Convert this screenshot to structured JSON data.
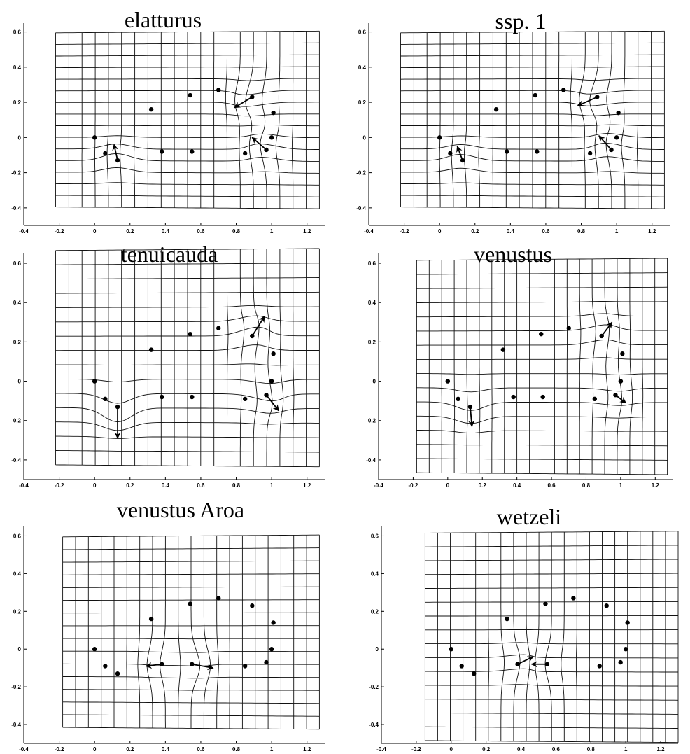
{
  "chart_data": [
    {
      "type": "scatter",
      "title": "elatturus",
      "xlim": [
        -0.4,
        1.3
      ],
      "ylim": [
        -0.5,
        0.65
      ],
      "xticks": [
        "-0.4",
        "-0.2",
        "0",
        "0.2",
        "0.4",
        "0.6",
        "0.8",
        "1",
        "1.2"
      ],
      "yticks": [
        "-0.4",
        "-0.2",
        "0",
        "0.2",
        "0.4",
        "0.6"
      ],
      "grid_extent": {
        "x": [
          -0.22,
          1.27
        ],
        "y": [
          -0.4,
          0.6
        ]
      },
      "landmarks": {
        "x": [
          0.0,
          0.06,
          0.13,
          0.32,
          0.38,
          0.54,
          0.55,
          0.7,
          0.85,
          0.89,
          0.97,
          1.0,
          1.01
        ],
        "y": [
          0.0,
          -0.09,
          -0.13,
          0.16,
          -0.08,
          0.24,
          -0.08,
          0.27,
          -0.09,
          0.23,
          -0.07,
          0.0,
          0.14
        ]
      },
      "vectors": [
        {
          "x": 0.13,
          "y": -0.13,
          "dx": -0.02,
          "dy": 0.09
        },
        {
          "x": 0.89,
          "y": 0.23,
          "dx": -0.1,
          "dy": -0.06
        },
        {
          "x": 0.97,
          "y": -0.07,
          "dx": -0.08,
          "dy": 0.07
        }
      ]
    },
    {
      "type": "scatter",
      "title": "ssp. 1",
      "xlim": [
        -0.4,
        1.3
      ],
      "ylim": [
        -0.5,
        0.65
      ],
      "xticks": [
        "-0.4",
        "-0.2",
        "0",
        "0.2",
        "0.4",
        "0.6",
        "0.8",
        "1",
        "1.2"
      ],
      "yticks": [
        "-0.4",
        "-0.2",
        "0",
        "0.2",
        "0.4",
        "0.6"
      ],
      "grid_extent": {
        "x": [
          -0.22,
          1.27
        ],
        "y": [
          -0.4,
          0.6
        ]
      },
      "landmarks": {
        "x": [
          0.0,
          0.06,
          0.13,
          0.32,
          0.38,
          0.54,
          0.55,
          0.7,
          0.85,
          0.89,
          0.97,
          1.0,
          1.01
        ],
        "y": [
          0.0,
          -0.09,
          -0.13,
          0.16,
          -0.08,
          0.24,
          -0.08,
          0.27,
          -0.09,
          0.23,
          -0.07,
          0.0,
          0.14
        ]
      },
      "vectors": [
        {
          "x": 0.13,
          "y": -0.13,
          "dx": -0.03,
          "dy": 0.08
        },
        {
          "x": 0.89,
          "y": 0.23,
          "dx": -0.11,
          "dy": -0.05
        },
        {
          "x": 0.97,
          "y": -0.07,
          "dx": -0.07,
          "dy": 0.08
        }
      ]
    },
    {
      "type": "scatter",
      "title": "tenuicauda",
      "xlim": [
        -0.4,
        1.3
      ],
      "ylim": [
        -0.5,
        0.65
      ],
      "xticks": [
        "-0.4",
        "-0.2",
        "0",
        "0.2",
        "0.4",
        "0.6",
        "0.8",
        "1",
        "1.2"
      ],
      "yticks": [
        "-0.4",
        "-0.2",
        "0",
        "0.2",
        "0.4",
        "0.6"
      ],
      "grid_extent": {
        "x": [
          -0.22,
          1.27
        ],
        "y": [
          -0.43,
          0.67
        ]
      },
      "landmarks": {
        "x": [
          0.0,
          0.06,
          0.13,
          0.32,
          0.38,
          0.54,
          0.55,
          0.7,
          0.85,
          0.89,
          0.97,
          1.0,
          1.01
        ],
        "y": [
          0.0,
          -0.09,
          -0.13,
          0.16,
          -0.08,
          0.24,
          -0.08,
          0.27,
          -0.09,
          0.23,
          -0.07,
          0.0,
          0.14
        ]
      },
      "vectors": [
        {
          "x": 0.13,
          "y": -0.13,
          "dx": 0.0,
          "dy": -0.16
        },
        {
          "x": 0.89,
          "y": 0.23,
          "dx": 0.07,
          "dy": 0.1
        },
        {
          "x": 0.97,
          "y": -0.07,
          "dx": 0.07,
          "dy": -0.08
        }
      ]
    },
    {
      "type": "scatter",
      "title": "venustus",
      "xlim": [
        -0.4,
        1.3
      ],
      "ylim": [
        -0.5,
        0.65
      ],
      "xticks": [
        "-0.4",
        "-0.2",
        "0",
        "0.2",
        "0.4",
        "0.6",
        "0.8",
        "1",
        "1.2"
      ],
      "yticks": [
        "-0.4",
        "-0.2",
        "0",
        "0.2",
        "0.4",
        "0.6"
      ],
      "grid_extent": {
        "x": [
          -0.18,
          1.27
        ],
        "y": [
          -0.47,
          0.62
        ]
      },
      "landmarks": {
        "x": [
          0.0,
          0.06,
          0.13,
          0.32,
          0.38,
          0.54,
          0.55,
          0.7,
          0.85,
          0.89,
          0.97,
          1.0,
          1.01
        ],
        "y": [
          0.0,
          -0.09,
          -0.13,
          0.16,
          -0.08,
          0.24,
          -0.08,
          0.27,
          -0.09,
          0.23,
          -0.07,
          0.0,
          0.14
        ]
      },
      "vectors": [
        {
          "x": 0.13,
          "y": -0.13,
          "dx": 0.01,
          "dy": -0.1
        },
        {
          "x": 0.89,
          "y": 0.23,
          "dx": 0.06,
          "dy": 0.07
        },
        {
          "x": 0.97,
          "y": -0.07,
          "dx": 0.06,
          "dy": -0.04
        }
      ]
    },
    {
      "type": "scatter",
      "title": "venustus Aroa",
      "xlim": [
        -0.4,
        1.3
      ],
      "ylim": [
        -0.5,
        0.65
      ],
      "xticks": [
        "-0.4",
        "-0.2",
        "0",
        "0.2",
        "0.4",
        "0.6",
        "0.8",
        "1",
        "1.2"
      ],
      "yticks": [
        "-0.4",
        "-0.2",
        "0",
        "0.2",
        "0.4",
        "0.6"
      ],
      "grid_extent": {
        "x": [
          -0.18,
          1.27
        ],
        "y": [
          -0.42,
          0.6
        ]
      },
      "landmarks": {
        "x": [
          0.0,
          0.06,
          0.13,
          0.32,
          0.38,
          0.54,
          0.55,
          0.7,
          0.85,
          0.89,
          0.97,
          1.0,
          1.01
        ],
        "y": [
          0.0,
          -0.09,
          -0.13,
          0.16,
          -0.08,
          0.24,
          -0.08,
          0.27,
          -0.09,
          0.23,
          -0.07,
          0.0,
          0.14
        ]
      },
      "vectors": [
        {
          "x": 0.38,
          "y": -0.08,
          "dx": -0.09,
          "dy": -0.01
        },
        {
          "x": 0.55,
          "y": -0.08,
          "dx": 0.12,
          "dy": -0.02
        }
      ]
    },
    {
      "type": "scatter",
      "title": "wetzeli",
      "xlim": [
        -0.4,
        1.3
      ],
      "ylim": [
        -0.5,
        0.65
      ],
      "xticks": [
        "-0.4",
        "-0.2",
        "0",
        "0.2",
        "0.4",
        "0.6",
        "0.8",
        "1",
        "1.2"
      ],
      "yticks": [
        "-0.4",
        "-0.2",
        "0",
        "0.2",
        "0.4",
        "0.6"
      ],
      "grid_extent": {
        "x": [
          -0.15,
          1.3
        ],
        "y": [
          -0.49,
          0.62
        ]
      },
      "landmarks": {
        "x": [
          0.0,
          0.06,
          0.13,
          0.32,
          0.38,
          0.54,
          0.55,
          0.7,
          0.85,
          0.89,
          0.97,
          1.0,
          1.01
        ],
        "y": [
          0.0,
          -0.09,
          -0.13,
          0.16,
          -0.08,
          0.24,
          -0.08,
          0.27,
          -0.09,
          0.23,
          -0.07,
          0.0,
          0.14
        ]
      },
      "vectors": [
        {
          "x": 0.38,
          "y": -0.08,
          "dx": 0.09,
          "dy": 0.04
        },
        {
          "x": 0.55,
          "y": -0.08,
          "dx": -0.09,
          "dy": 0.0
        }
      ]
    }
  ]
}
